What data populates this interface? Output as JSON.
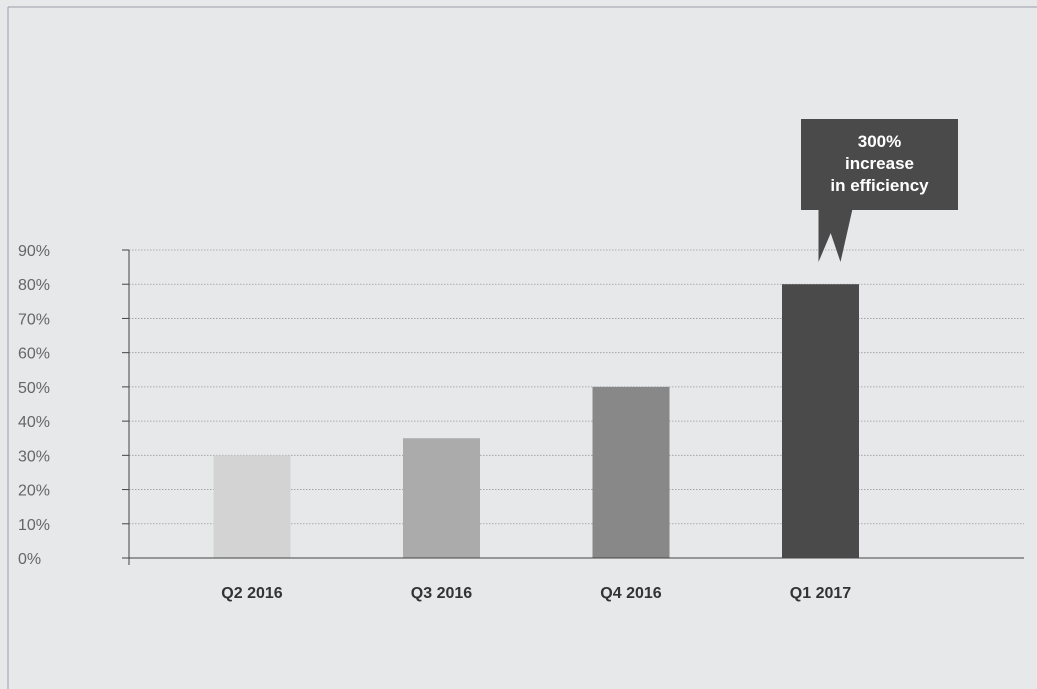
{
  "chart_data": {
    "type": "bar",
    "categories": [
      "Q2 2016",
      "Q3 2016",
      "Q4 2016",
      "Q1 2017"
    ],
    "values": [
      30,
      35,
      50,
      80
    ],
    "bar_colors": [
      "#d3d3d3",
      "#ababab",
      "#888888",
      "#4a4a4a"
    ],
    "y_ticks": [
      "0%",
      "10%",
      "20%",
      "30%",
      "40%",
      "50%",
      "60%",
      "70%",
      "80%",
      "90%"
    ],
    "ylim": [
      0,
      90
    ],
    "grid": true,
    "callout": {
      "lines": [
        "300%",
        "increase",
        "in efficiency"
      ],
      "target_category": "Q1 2017",
      "background": "#4a4a4a",
      "text_color": "#ffffff"
    }
  },
  "colors": {
    "background": "#e7e8ea",
    "frame": "#9aa0aa",
    "axis": "#444444",
    "grid": "#999999",
    "tick_text": "#666666",
    "category_text": "#333333"
  }
}
